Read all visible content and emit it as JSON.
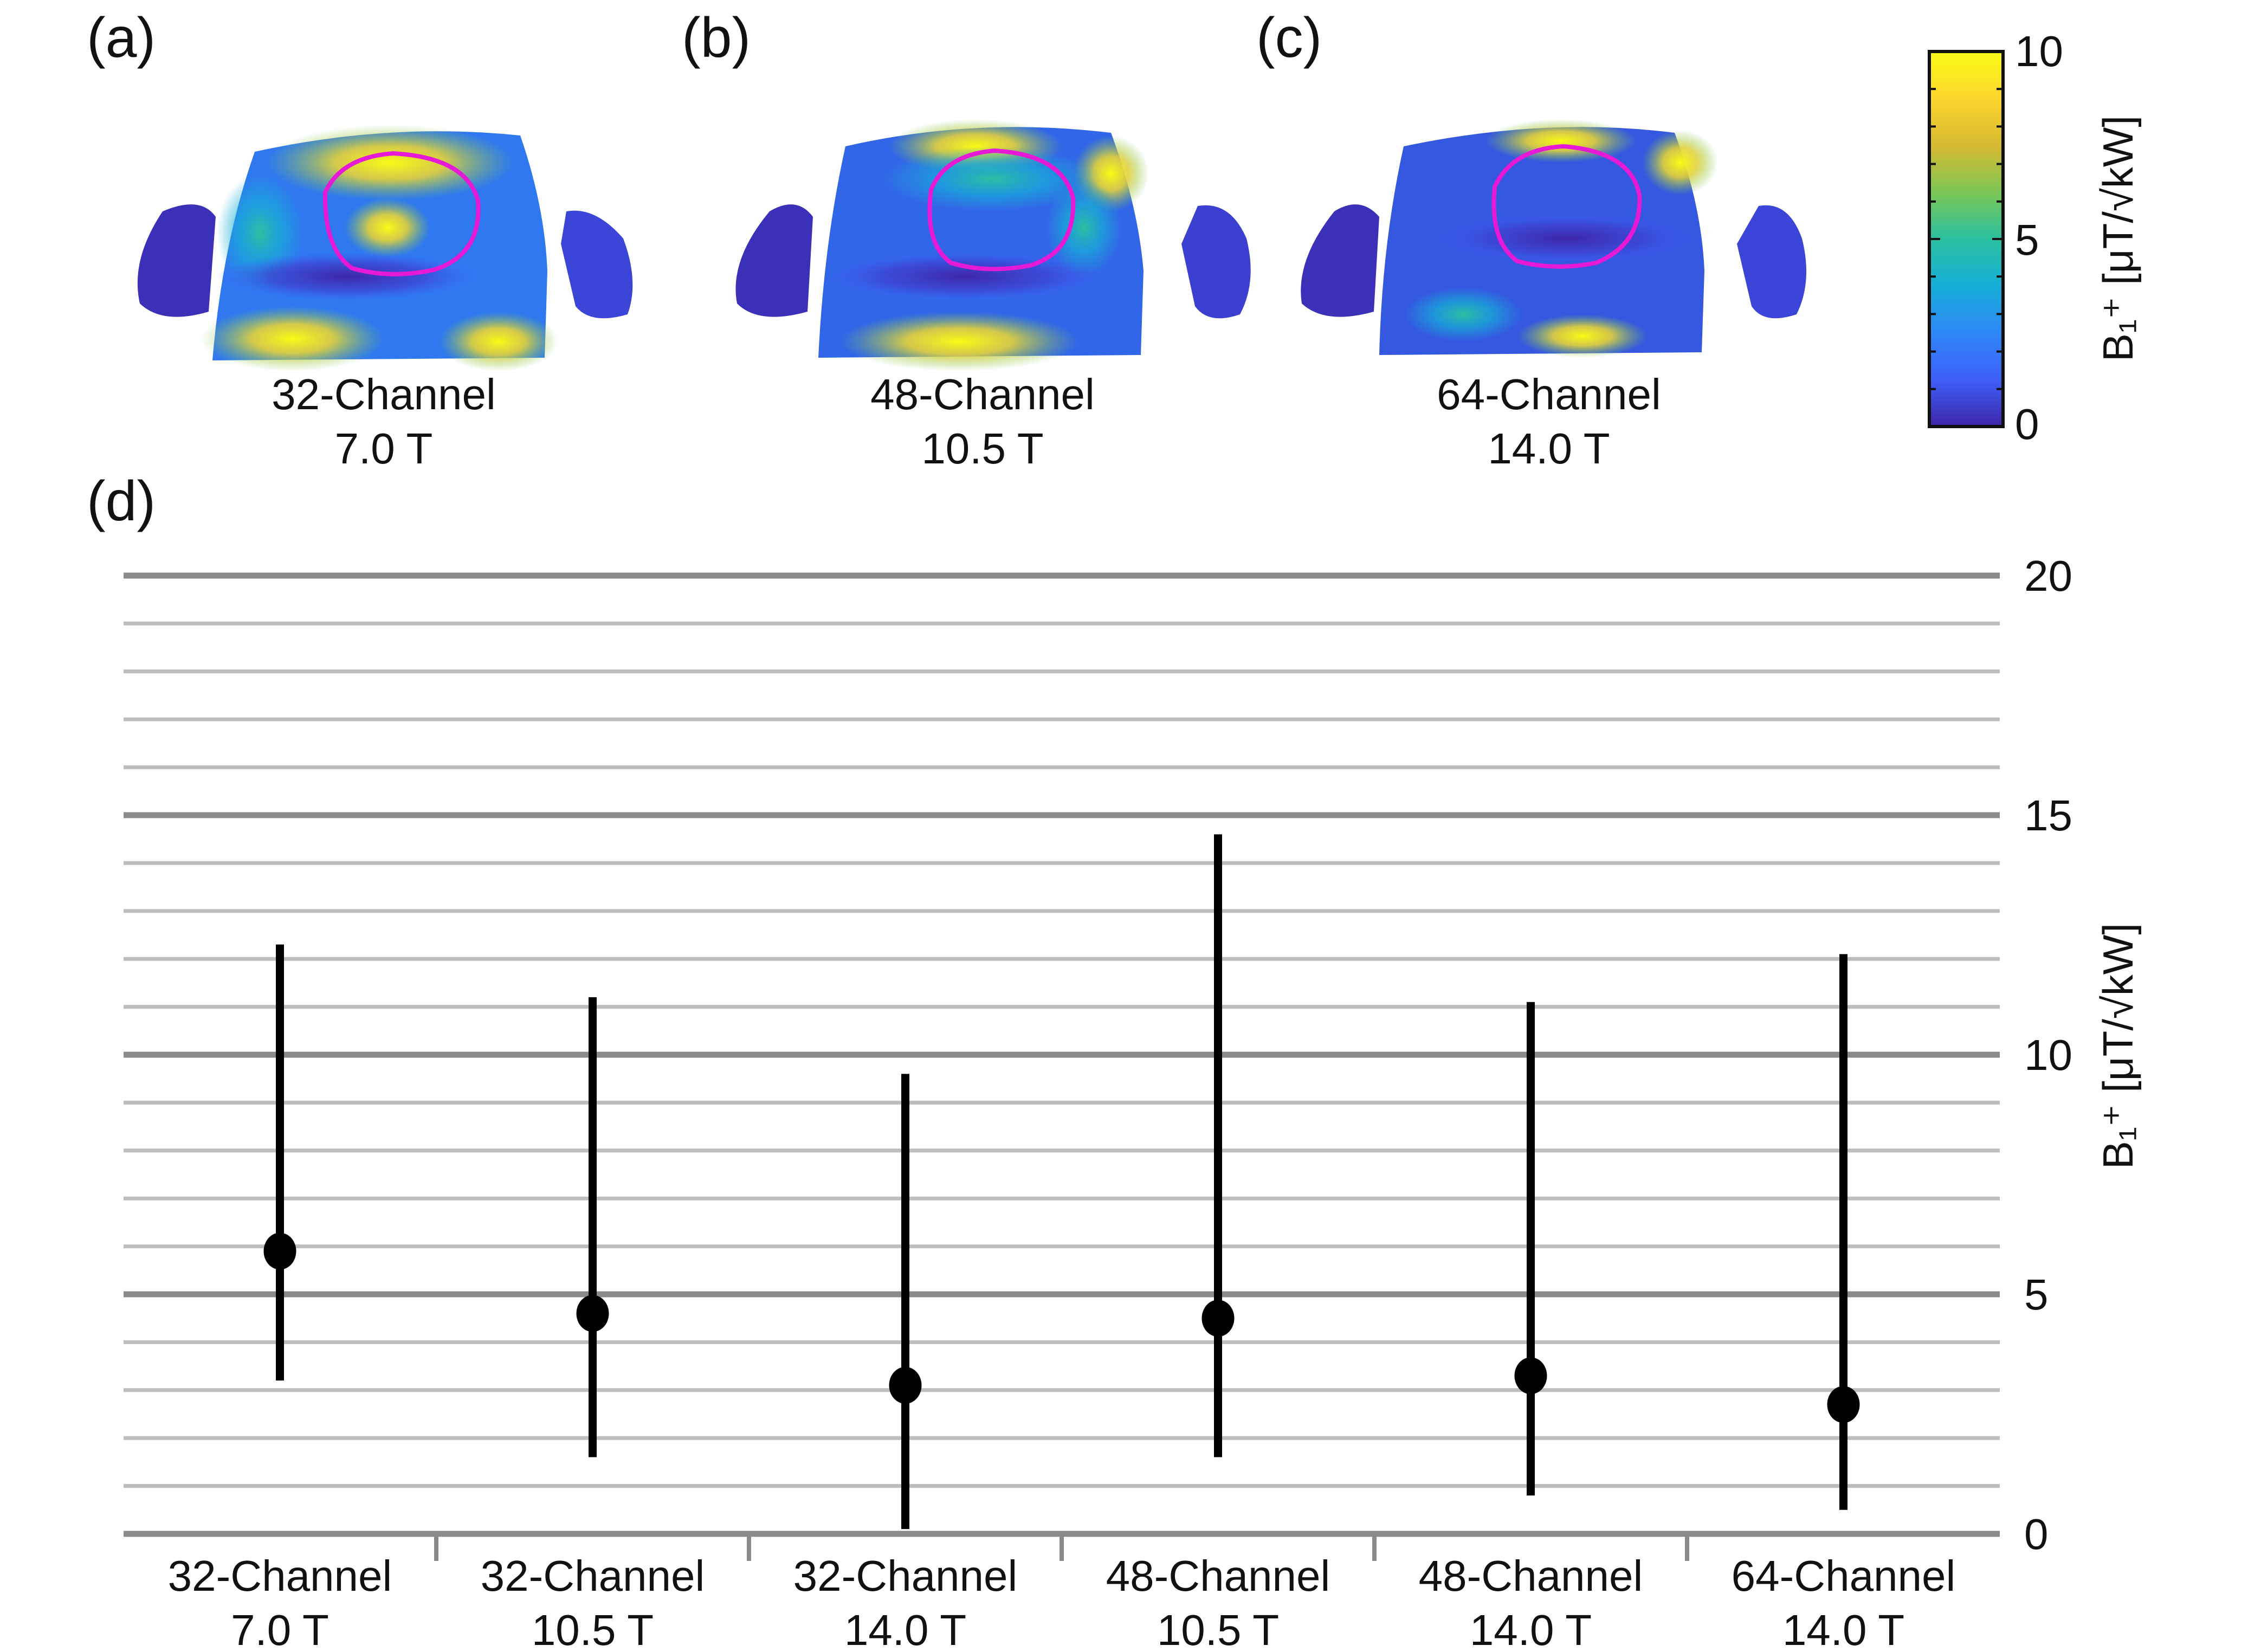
{
  "panels": [
    {
      "label": "(a)",
      "caption_line1": "32-Channel",
      "caption_line2": "7.0 T"
    },
    {
      "label": "(b)",
      "caption_line1": "48-Channel",
      "caption_line2": "10.5 T"
    },
    {
      "label": "(c)",
      "caption_line1": "64-Channel",
      "caption_line2": "14.0 T"
    }
  ],
  "colorbar": {
    "min_label": "0",
    "mid_label": "5",
    "max_label": "10",
    "min": 0,
    "max": 10,
    "label": "B₁⁺ [μT/√kW]",
    "colormap": [
      "#3e26a8",
      "#3e5ff8",
      "#2e87f7",
      "#16aed6",
      "#2ac0a0",
      "#7cc655",
      "#d8b932",
      "#fbd62d",
      "#f9fb15"
    ]
  },
  "roi_color": "#e619d6",
  "chart_data": {
    "panel_label": "(d)",
    "type": "scatter",
    "subtype": "point-range",
    "categories": [
      {
        "line1": "32-Channel",
        "line2": "7.0 T"
      },
      {
        "line1": "32-Channel",
        "line2": "10.5 T"
      },
      {
        "line1": "32-Channel",
        "line2": "14.0 T"
      },
      {
        "line1": "48-Channel",
        "line2": "10.5 T"
      },
      {
        "line1": "48-Channel",
        "line2": "14.0 T"
      },
      {
        "line1": "64-Channel",
        "line2": "14.0 T"
      }
    ],
    "mean": [
      5.9,
      4.6,
      3.1,
      4.5,
      3.3,
      2.7
    ],
    "lower": [
      3.2,
      1.6,
      0.1,
      1.6,
      0.8,
      0.5
    ],
    "upper": [
      12.3,
      11.2,
      9.6,
      14.6,
      11.1,
      12.1
    ],
    "ylabel": "B₁⁺ [μT/√kW]",
    "ylim": [
      0,
      20
    ],
    "yticks": [
      0,
      5,
      10,
      15,
      20
    ],
    "ytick_labels": [
      "0",
      "5",
      "10",
      "15",
      "20"
    ],
    "minor_grid_step": 1,
    "yaxis_side": "right",
    "grid": true
  }
}
